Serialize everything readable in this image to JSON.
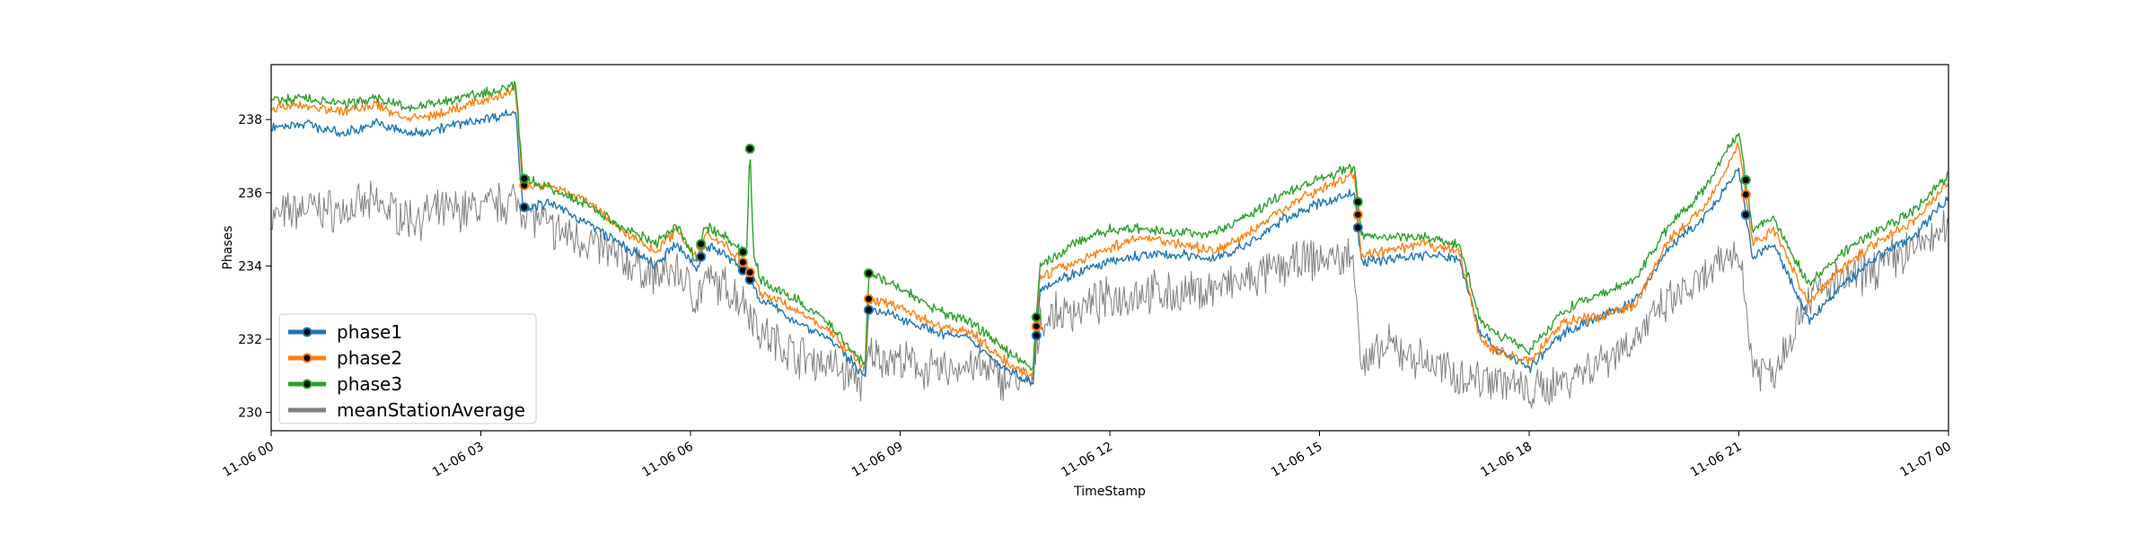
{
  "chart_data": {
    "type": "line",
    "title": "",
    "xlabel": "TimeStamp",
    "ylabel": "Phases",
    "x_range": [
      0,
      24
    ],
    "ylim": [
      229.5,
      239.5
    ],
    "x_ticks": [
      0,
      3,
      6,
      9,
      12,
      15,
      18,
      21,
      24
    ],
    "x_tick_labels": [
      "11-06 00",
      "11-06 03",
      "11-06 06",
      "11-06 09",
      "11-06 12",
      "11-06 15",
      "11-06 18",
      "11-06 21",
      "11-07 00"
    ],
    "y_ticks": [
      230,
      232,
      234,
      236,
      238
    ],
    "y_tick_labels": [
      "230",
      "232",
      "234",
      "236",
      "238"
    ],
    "grid": false,
    "legend_position": "lower-left",
    "series": [
      {
        "name": "phase1",
        "color": "#1f77b4",
        "x": [
          0,
          0.5,
          1,
          1.5,
          2,
          2.5,
          3,
          3.5,
          3.6,
          4,
          4.5,
          5,
          5.5,
          5.8,
          6.1,
          6.2,
          6.5,
          6.8,
          7,
          7.5,
          8,
          8.5,
          8.55,
          9,
          9.5,
          10,
          10.5,
          10.9,
          11,
          11.5,
          12,
          12.5,
          13,
          13.5,
          14,
          14.5,
          15,
          15.5,
          15.6,
          16,
          16.5,
          17,
          17.3,
          17.5,
          18,
          18.5,
          19,
          19.5,
          20,
          20.5,
          21,
          21.2,
          21.5,
          22,
          22.5,
          23,
          23.5,
          24
        ],
        "y": [
          237.8,
          237.9,
          237.6,
          237.9,
          237.6,
          237.8,
          238.0,
          238.2,
          235.6,
          235.7,
          235.2,
          234.6,
          234.0,
          234.6,
          233.9,
          234.6,
          234.3,
          233.8,
          233.1,
          232.5,
          232.0,
          231.0,
          232.8,
          232.6,
          232.2,
          232.0,
          231.2,
          230.8,
          233.4,
          233.8,
          234.1,
          234.3,
          234.3,
          234.2,
          234.6,
          235.3,
          235.7,
          236.0,
          234.1,
          234.2,
          234.3,
          234.2,
          232.2,
          231.8,
          231.2,
          232.2,
          232.6,
          233.0,
          234.5,
          235.3,
          236.6,
          234.2,
          234.6,
          232.5,
          233.5,
          234.3,
          234.8,
          235.9
        ]
      },
      {
        "name": "phase2",
        "color": "#ff7f0e",
        "x": [
          0,
          0.5,
          1,
          1.5,
          2,
          2.5,
          3,
          3.5,
          3.6,
          4,
          4.5,
          5,
          5.5,
          5.8,
          6.1,
          6.2,
          6.5,
          6.8,
          7,
          7.5,
          8,
          8.5,
          8.55,
          9,
          9.5,
          10,
          10.5,
          10.9,
          11,
          11.5,
          12,
          12.5,
          13,
          13.5,
          14,
          14.5,
          15,
          15.5,
          15.6,
          16,
          16.5,
          17,
          17.3,
          17.5,
          18,
          18.5,
          19,
          19.5,
          20,
          20.5,
          21,
          21.2,
          21.5,
          22,
          22.5,
          23,
          23.5,
          24
        ],
        "y": [
          238.3,
          238.4,
          238.2,
          238.4,
          238.0,
          238.2,
          238.5,
          238.8,
          236.2,
          236.2,
          235.8,
          235.0,
          234.4,
          235.0,
          234.2,
          234.9,
          234.6,
          234.0,
          233.3,
          232.8,
          232.2,
          231.2,
          233.1,
          232.9,
          232.4,
          232.2,
          231.4,
          231.0,
          233.7,
          234.1,
          234.5,
          234.8,
          234.6,
          234.4,
          234.9,
          235.6,
          236.1,
          236.5,
          234.3,
          234.4,
          234.6,
          234.4,
          232.0,
          231.7,
          231.4,
          232.5,
          232.6,
          232.9,
          234.7,
          235.6,
          237.3,
          234.6,
          235.0,
          233.0,
          234.0,
          234.7,
          235.2,
          236.3
        ]
      },
      {
        "name": "phase3",
        "color": "#2ca02c",
        "x": [
          0,
          0.5,
          1,
          1.5,
          2,
          2.5,
          3,
          3.5,
          3.6,
          4,
          4.5,
          5,
          5.5,
          5.8,
          6.1,
          6.2,
          6.5,
          6.8,
          6.85,
          6.9,
          7,
          7.5,
          8,
          8.5,
          8.55,
          9,
          9.5,
          10,
          10.5,
          10.9,
          11,
          11.5,
          12,
          12.5,
          13,
          13.5,
          14,
          14.5,
          15,
          15.5,
          15.6,
          16,
          16.5,
          17,
          17.3,
          17.5,
          18,
          18.5,
          19,
          19.5,
          20,
          20.5,
          21,
          21.2,
          21.5,
          22,
          22.5,
          23,
          23.5,
          24
        ],
        "y": [
          238.5,
          238.6,
          238.4,
          238.6,
          238.3,
          238.5,
          238.7,
          238.9,
          236.4,
          236.1,
          235.7,
          235.1,
          234.6,
          235.1,
          234.1,
          235.1,
          234.8,
          234.3,
          237.2,
          234.4,
          233.6,
          233.1,
          232.4,
          231.3,
          233.8,
          233.4,
          232.8,
          232.5,
          231.7,
          231.2,
          234.0,
          234.6,
          235.0,
          235.0,
          234.9,
          234.9,
          235.4,
          236.0,
          236.4,
          236.7,
          234.8,
          234.8,
          234.8,
          234.6,
          232.5,
          232.2,
          231.7,
          232.8,
          233.2,
          233.6,
          235.1,
          236.1,
          237.7,
          235.0,
          235.3,
          233.5,
          234.4,
          235.0,
          235.5,
          236.5
        ]
      },
      {
        "name": "meanStationAverage",
        "color": "#7f7f7f",
        "x": [
          0,
          0.5,
          1,
          1.5,
          2,
          2.5,
          3,
          3.5,
          3.6,
          4,
          4.5,
          5,
          5.5,
          5.8,
          6.1,
          6.2,
          6.5,
          6.8,
          7,
          7.5,
          8,
          8.5,
          8.55,
          9,
          9.5,
          10,
          10.5,
          10.9,
          11,
          11.5,
          12,
          12.5,
          13,
          13.5,
          14,
          14.5,
          15,
          15.5,
          15.6,
          16,
          16.5,
          17,
          17.3,
          17.5,
          18,
          18.5,
          19,
          19.5,
          20,
          20.5,
          21,
          21.2,
          21.5,
          22,
          22.5,
          23,
          23.5,
          24
        ],
        "y": [
          235.3,
          235.6,
          235.5,
          235.7,
          235.3,
          235.5,
          235.6,
          235.8,
          235.6,
          235.0,
          234.7,
          234.2,
          233.7,
          233.9,
          233.1,
          233.6,
          233.4,
          233.0,
          232.2,
          231.6,
          231.3,
          230.8,
          231.6,
          231.4,
          231.1,
          231.3,
          230.9,
          230.8,
          232.5,
          232.8,
          233.1,
          233.3,
          233.2,
          233.4,
          233.6,
          234.0,
          234.2,
          234.2,
          231.2,
          231.8,
          231.4,
          231.0,
          230.9,
          231.0,
          230.5,
          230.9,
          231.4,
          232.0,
          233.0,
          233.6,
          234.5,
          231.3,
          231.1,
          233.2,
          233.6,
          234.0,
          234.5,
          235.0
        ]
      }
    ],
    "marker_series": [
      "phase1",
      "phase2",
      "phase3"
    ],
    "marker_x": [
      3.62,
      6.15,
      6.75,
      6.85,
      8.55,
      10.95,
      15.55,
      21.1
    ]
  }
}
